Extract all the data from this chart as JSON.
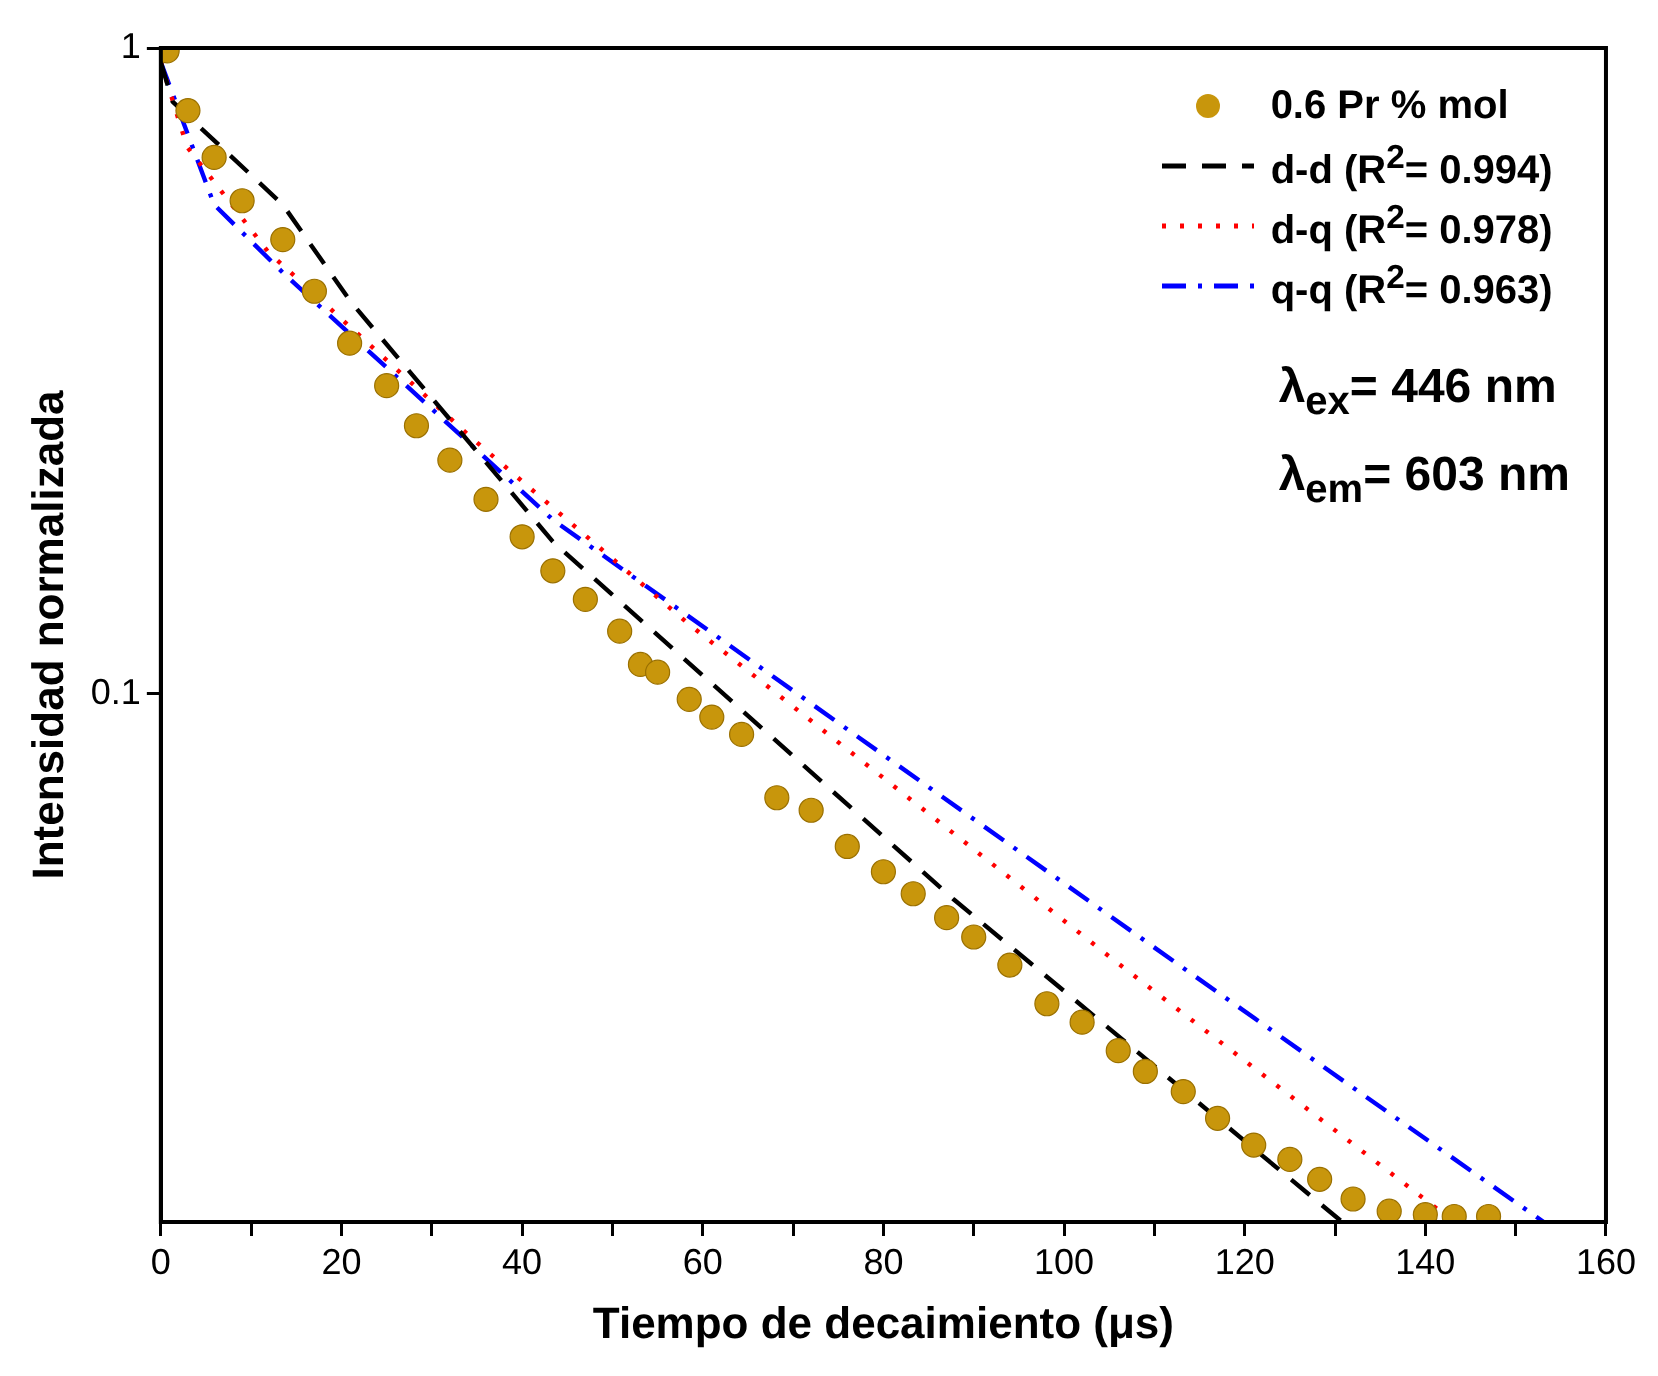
{
  "chart_data": {
    "type": "scatter",
    "xlabel": "Tiempo de decaimiento (μs)",
    "ylabel": "Intensidad normalizada",
    "log": "y",
    "grid": false,
    "legend": "top right",
    "xlim": [
      0,
      160
    ],
    "xticks": [
      0,
      {
        "value": 10,
        "label": null
      },
      20,
      {
        "value": 30,
        "label": null
      },
      40,
      {
        "value": 50,
        "label": null
      },
      60,
      {
        "value": 70,
        "label": null
      },
      80,
      {
        "value": 90,
        "label": null
      },
      100,
      {
        "value": 110,
        "label": null
      },
      120,
      {
        "value": 130,
        "label": null
      },
      140,
      {
        "value": 150,
        "label": null
      },
      160
    ],
    "ylim": [
      0.0152,
      1
    ],
    "yticks": [
      0.1,
      1
    ],
    "annotations": [
      "λ$_{ex}$= 446 nm",
      "λ$_{em}$= 603 nm"
    ],
    "series": [
      {
        "name": "0.6 Pr % mol",
        "type": "scatter",
        "marker": "circle",
        "color": "#c8960c",
        "x": [
          0.7,
          3,
          5.9,
          9,
          13.5,
          17,
          20.9,
          25,
          28.3,
          32,
          36,
          40,
          43.4,
          47,
          50.8,
          53.1,
          55,
          58.5,
          61,
          64.3,
          68.2,
          72,
          76,
          80,
          83.3,
          87,
          90,
          94,
          98.1,
          102,
          106,
          109,
          113.2,
          117,
          121,
          125,
          128.3,
          132,
          136,
          140,
          143.2,
          147
        ],
        "values": [
          0.99,
          0.8,
          0.677,
          0.58,
          0.505,
          0.42,
          0.349,
          0.3,
          0.26,
          0.23,
          0.2,
          0.175,
          0.155,
          0.14,
          0.125,
          0.111,
          0.108,
          0.098,
          0.092,
          0.0865,
          0.069,
          0.066,
          0.058,
          0.053,
          0.049,
          0.045,
          0.042,
          0.038,
          0.0331,
          0.031,
          0.028,
          0.026,
          0.0242,
          0.022,
          0.02,
          0.019,
          0.0177,
          0.0165,
          0.0158,
          0.0156,
          0.0155,
          0.0155
        ]
      },
      {
        "name": "d-d (R$^{2}$= 0.994)",
        "type": "line",
        "marker": "none",
        "line_style": "dashed",
        "color": "#000000",
        "x": [
          0,
          1.3,
          13.5,
          21,
          43.4,
          87.8,
          130.8
        ],
        "values": [
          0.95,
          0.826,
          0.572,
          0.405,
          0.172,
          0.048,
          0.0152
        ]
      },
      {
        "name": "d-q (R$^{2}$= 0.978)",
        "type": "line",
        "marker": "none",
        "line_style": "dotted",
        "color": "#ff0000",
        "x": [
          0,
          2.9,
          11.9,
          34.4,
          58.5,
          105.7,
          143.2
        ],
        "values": [
          0.95,
          0.703,
          0.483,
          0.249,
          0.128,
          0.0385,
          0.0152
        ]
      },
      {
        "name": "q-q (R$^{2}$= 0.963)",
        "type": "line",
        "marker": "none",
        "line_style": "dash-dot",
        "color": "#0000ff",
        "x": [
          0,
          5.9,
          13.5,
          43.4,
          77.2,
          113.2,
          153.1
        ],
        "values": [
          0.95,
          0.572,
          0.449,
          0.186,
          0.0857,
          0.0376,
          0.0152
        ]
      }
    ]
  }
}
